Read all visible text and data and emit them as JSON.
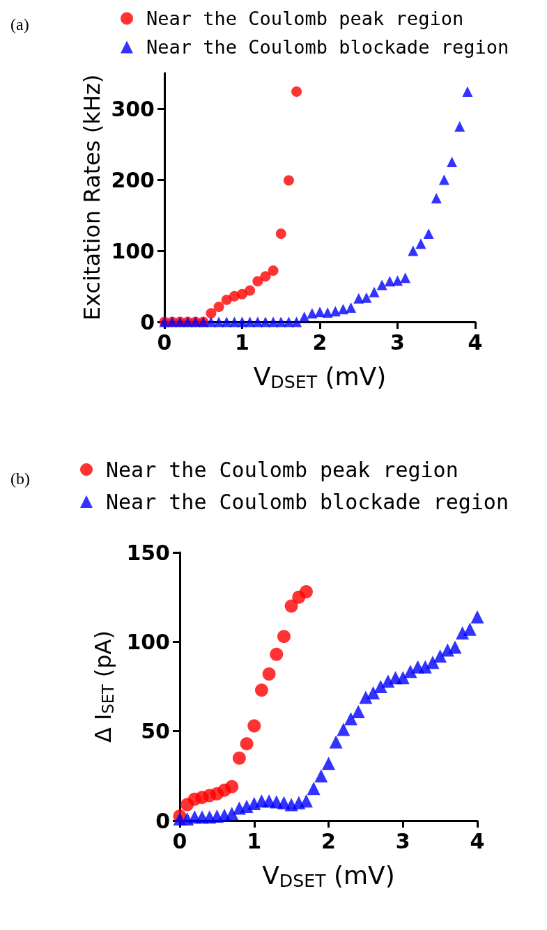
{
  "chart_data": [
    {
      "type": "scatter",
      "title": "(a)",
      "xlabel": "V$_{DSET}$ (mV)",
      "ylabel": "Excitation Rates (kHz)",
      "xlim": [
        0,
        4
      ],
      "xticks": [
        0,
        1,
        2,
        3,
        4
      ],
      "ylim": [
        0,
        350
      ],
      "yticks": [
        0,
        100,
        200,
        300
      ],
      "grid": false,
      "legend": "top left",
      "series": [
        {
          "name": "Near the Coulomb peak region",
          "color": "#ff0000",
          "marker": "circle",
          "x": [
            0,
            0.1,
            0.2,
            0.3,
            0.4,
            0.5,
            0.6,
            0.7,
            0.8,
            0.9,
            1.0,
            1.1,
            1.2,
            1.3,
            1.4,
            1.5,
            1.6,
            1.7
          ],
          "values": [
            0,
            0,
            0,
            0,
            0,
            0,
            12,
            21,
            31,
            36,
            39,
            44,
            57,
            64,
            72,
            124,
            199,
            324
          ]
        },
        {
          "name": "Near the Coulomb blockade region",
          "color": "#0000ff",
          "marker": "triangle",
          "x": [
            0,
            0.1,
            0.2,
            0.3,
            0.4,
            0.5,
            0.6,
            0.7,
            0.8,
            0.9,
            1.0,
            1.1,
            1.2,
            1.3,
            1.4,
            1.5,
            1.6,
            1.7,
            1.8,
            1.9,
            2.0,
            2.1,
            2.2,
            2.3,
            2.4,
            2.5,
            2.6,
            2.7,
            2.8,
            2.9,
            3.0,
            3.1,
            3.2,
            3.3,
            3.4,
            3.5,
            3.6,
            3.7,
            3.8,
            3.9
          ],
          "values": [
            0,
            0,
            0,
            0,
            0,
            0,
            0,
            0,
            0,
            0,
            0,
            0,
            0,
            0,
            0,
            0,
            0,
            0,
            7,
            12,
            14,
            13,
            15,
            18,
            20,
            33,
            34,
            42,
            52,
            57,
            58,
            62,
            100,
            110,
            124,
            174,
            200,
            225,
            275,
            324
          ]
        }
      ]
    },
    {
      "type": "scatter",
      "title": "(b)",
      "xlabel": "V$_{DSET}$ (mV)",
      "ylabel": "Δ I$_{SET}$ (pA)",
      "xlim": [
        0,
        4
      ],
      "xticks": [
        0,
        1,
        2,
        3,
        4
      ],
      "ylim": [
        0,
        150
      ],
      "yticks": [
        0,
        50,
        100,
        150
      ],
      "grid": false,
      "legend": "top left",
      "series": [
        {
          "name": "Near the Coulomb peak region",
          "color": "#ff0000",
          "marker": "circle",
          "x": [
            0,
            0.1,
            0.2,
            0.3,
            0.4,
            0.5,
            0.6,
            0.7,
            0.8,
            0.9,
            1.0,
            1.1,
            1.2,
            1.3,
            1.4,
            1.5,
            1.6,
            1.7
          ],
          "values": [
            2.5,
            9,
            12,
            13,
            14,
            15,
            17,
            19,
            35,
            43,
            53,
            73,
            82,
            93,
            103,
            120,
            125,
            128
          ]
        },
        {
          "name": "Near the Coulomb blockade region",
          "color": "#0000ff",
          "marker": "triangle",
          "x": [
            0,
            0.1,
            0.2,
            0.3,
            0.4,
            0.5,
            0.6,
            0.7,
            0.8,
            0.9,
            1.0,
            1.1,
            1.2,
            1.3,
            1.4,
            1.5,
            1.6,
            1.7,
            1.8,
            1.9,
            2.0,
            2.1,
            2.2,
            2.3,
            2.4,
            2.5,
            2.6,
            2.7,
            2.8,
            2.9,
            3.0,
            3.1,
            3.2,
            3.3,
            3.4,
            3.5,
            3.6,
            3.7,
            3.8,
            3.9,
            4.0
          ],
          "values": [
            1,
            1,
            2,
            2,
            2,
            2.5,
            3,
            4,
            7,
            8,
            9.5,
            11,
            11,
            10.5,
            10,
            9,
            10,
            11,
            18,
            25,
            32,
            44,
            51,
            57,
            61,
            69,
            71.5,
            75,
            78,
            80,
            80,
            83.5,
            86,
            86,
            88.5,
            92,
            95.5,
            97,
            105,
            107,
            114
          ]
        }
      ]
    }
  ]
}
